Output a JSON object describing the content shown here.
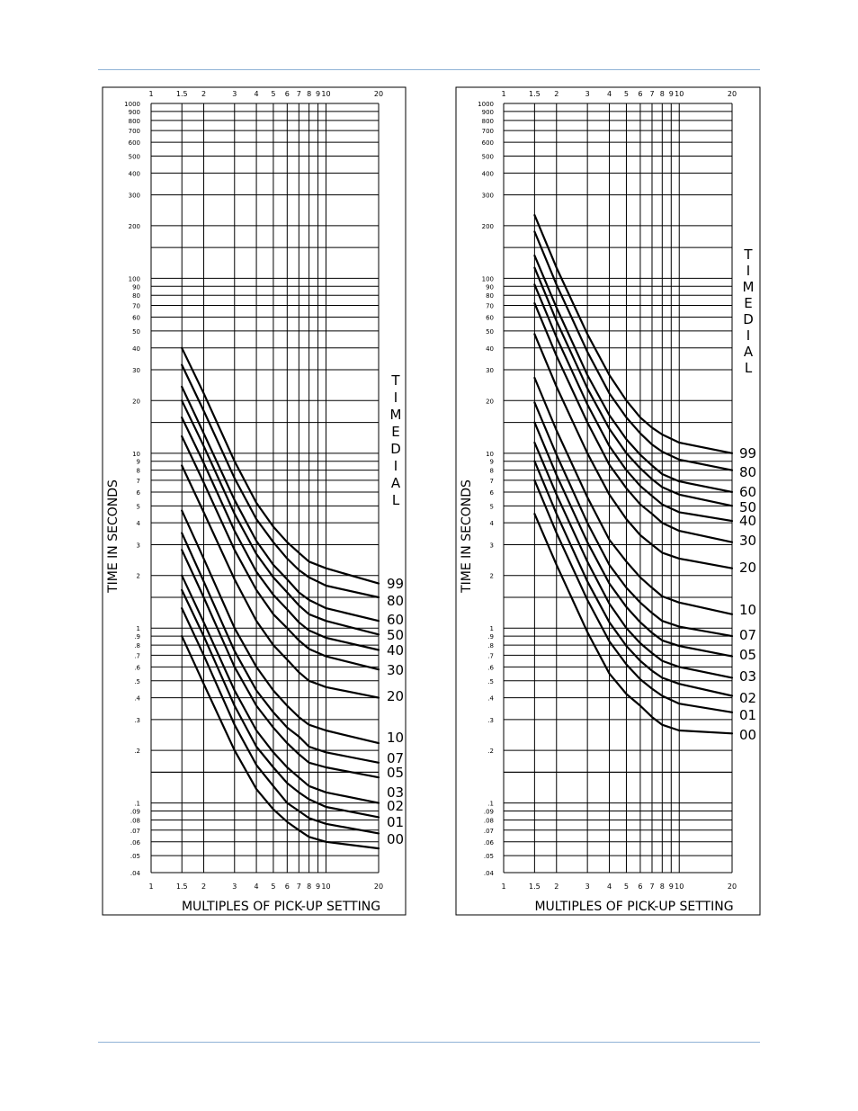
{
  "colors": {
    "rule": "#8fb2d6",
    "ink": "#000000"
  },
  "chart_data": [
    {
      "type": "line",
      "x_scale": "log",
      "y_scale": "log",
      "xlim": [
        1,
        20
      ],
      "ylim": [
        0.04,
        1000
      ],
      "xlabel": "MULTIPLES  OF  PICK-UP  SETTING",
      "ylabel": "TIME  IN  SECONDS",
      "legend_title": "TIMEDIAL",
      "legend_placement": "right",
      "grid": true,
      "x_tick_labels": [
        "1",
        "1.5",
        "2",
        "3",
        "4",
        "5",
        "6",
        "7",
        "8",
        "9",
        "10",
        "20"
      ],
      "y_tick_labels": [
        "1000",
        "900",
        "800",
        "700",
        "600",
        "500",
        "400",
        "300",
        "200",
        "100",
        "90",
        "80",
        "70",
        "60",
        "50",
        "40",
        "30",
        "20",
        "10",
        "9",
        "8",
        "7",
        "6",
        "5",
        "4",
        "3",
        "2",
        "1",
        ".9",
        ".8",
        ".7",
        ".6",
        ".5",
        ".4",
        ".3",
        ".2",
        ".1",
        ".09",
        ".08",
        ".07",
        ".06",
        ".05",
        ".04"
      ],
      "x": [
        1.5,
        2,
        3,
        4,
        5,
        6,
        7,
        8,
        10,
        20
      ],
      "series": [
        {
          "name": "99",
          "values": [
            40,
            22,
            9,
            5.2,
            3.8,
            3.1,
            2.7,
            2.4,
            2.2,
            1.8
          ]
        },
        {
          "name": "80",
          "values": [
            32,
            17.5,
            7.2,
            4.2,
            3.1,
            2.5,
            2.15,
            1.95,
            1.75,
            1.5
          ]
        },
        {
          "name": "60",
          "values": [
            24,
            13,
            5.4,
            3.15,
            2.3,
            1.9,
            1.6,
            1.45,
            1.3,
            1.1
          ]
        },
        {
          "name": "50",
          "values": [
            20,
            11,
            4.5,
            2.65,
            1.95,
            1.6,
            1.35,
            1.2,
            1.1,
            0.92
          ]
        },
        {
          "name": "40",
          "values": [
            16,
            8.8,
            3.6,
            2.1,
            1.55,
            1.28,
            1.08,
            0.97,
            0.88,
            0.75
          ]
        },
        {
          "name": "30",
          "values": [
            12.5,
            6.8,
            2.8,
            1.65,
            1.2,
            1.0,
            0.85,
            0.76,
            0.69,
            0.58
          ]
        },
        {
          "name": "20",
          "values": [
            8.5,
            4.6,
            1.9,
            1.1,
            0.8,
            0.66,
            0.56,
            0.5,
            0.46,
            0.4
          ]
        },
        {
          "name": "10",
          "values": [
            4.7,
            2.5,
            1.0,
            0.6,
            0.44,
            0.36,
            0.31,
            0.28,
            0.26,
            0.22
          ]
        },
        {
          "name": "07",
          "values": [
            3.5,
            1.85,
            0.74,
            0.44,
            0.33,
            0.27,
            0.24,
            0.21,
            0.195,
            0.17
          ]
        },
        {
          "name": "05",
          "values": [
            2.8,
            1.5,
            0.6,
            0.36,
            0.27,
            0.22,
            0.19,
            0.17,
            0.16,
            0.14
          ]
        },
        {
          "name": "03",
          "values": [
            2.0,
            1.08,
            0.44,
            0.26,
            0.195,
            0.16,
            0.14,
            0.125,
            0.115,
            0.1
          ]
        },
        {
          "name": "02",
          "values": [
            1.65,
            0.9,
            0.36,
            0.21,
            0.16,
            0.13,
            0.115,
            0.105,
            0.095,
            0.083
          ]
        },
        {
          "name": "01",
          "values": [
            1.3,
            0.7,
            0.28,
            0.165,
            0.125,
            0.1,
            0.09,
            0.082,
            0.076,
            0.067
          ]
        },
        {
          "name": "00",
          "values": [
            0.9,
            0.48,
            0.2,
            0.12,
            0.092,
            0.078,
            0.07,
            0.064,
            0.06,
            0.055
          ]
        }
      ]
    },
    {
      "type": "line",
      "x_scale": "log",
      "y_scale": "log",
      "xlim": [
        1,
        20
      ],
      "ylim": [
        0.04,
        1000
      ],
      "xlabel": "MULTIPLES  OF  PICK-UP  SETTING",
      "ylabel": "TIME  IN  SECONDS",
      "legend_title": "TIMEDIAL",
      "legend_placement": "right",
      "grid": true,
      "x_tick_labels": [
        "1",
        "1.5",
        "2",
        "3",
        "4",
        "5",
        "6",
        "7",
        "8",
        "9",
        "10",
        "20"
      ],
      "y_tick_labels": [
        "1000",
        "900",
        "800",
        "700",
        "600",
        "500",
        "400",
        "300",
        "200",
        "100",
        "90",
        "80",
        "70",
        "60",
        "50",
        "40",
        "30",
        "20",
        "10",
        "9",
        "8",
        "7",
        "6",
        "5",
        "4",
        "3",
        "2",
        "1",
        ".9",
        ".8",
        ".7",
        ".6",
        ".5",
        ".4",
        ".3",
        ".2",
        ".1",
        ".09",
        ".08",
        ".07",
        ".06",
        ".05",
        ".04"
      ],
      "x": [
        1.5,
        2,
        3,
        4,
        5,
        6,
        7,
        8,
        10,
        20
      ],
      "series": [
        {
          "name": "99",
          "values": [
            230,
            115,
            48,
            28,
            20,
            16,
            14,
            12.8,
            11.5,
            10
          ]
        },
        {
          "name": "80",
          "values": [
            185,
            92,
            38,
            22,
            16,
            13,
            11.2,
            10.2,
            9.2,
            8
          ]
        },
        {
          "name": "60",
          "values": [
            135,
            68,
            28,
            16.5,
            12,
            9.8,
            8.5,
            7.6,
            6.9,
            6
          ]
        },
        {
          "name": "50",
          "values": [
            115,
            57,
            23.5,
            13.8,
            10,
            8.2,
            7.1,
            6.4,
            5.8,
            5
          ]
        },
        {
          "name": "40",
          "values": [
            92,
            46,
            19,
            11,
            8,
            6.5,
            5.7,
            5.1,
            4.6,
            4.1
          ]
        },
        {
          "name": "30",
          "values": [
            72,
            36,
            15,
            8.6,
            6.3,
            5.1,
            4.5,
            4,
            3.6,
            3.1
          ]
        },
        {
          "name": "20",
          "values": [
            48,
            24,
            10,
            5.8,
            4.2,
            3.4,
            3,
            2.7,
            2.5,
            2.2
          ]
        },
        {
          "name": "10",
          "values": [
            27,
            13.5,
            5.6,
            3.2,
            2.4,
            1.95,
            1.7,
            1.52,
            1.4,
            1.2
          ]
        },
        {
          "name": "07",
          "values": [
            19.5,
            9.8,
            4,
            2.3,
            1.7,
            1.4,
            1.22,
            1.1,
            1.02,
            0.9
          ]
        },
        {
          "name": "05",
          "values": [
            15,
            7.5,
            3.1,
            1.8,
            1.32,
            1.08,
            0.94,
            0.85,
            0.79,
            0.69
          ]
        },
        {
          "name": "03",
          "values": [
            11.5,
            5.8,
            2.4,
            1.38,
            1.0,
            0.82,
            0.72,
            0.65,
            0.6,
            0.52
          ]
        },
        {
          "name": "02",
          "values": [
            9,
            4.5,
            1.85,
            1.08,
            0.79,
            0.65,
            0.57,
            0.52,
            0.48,
            0.41
          ]
        },
        {
          "name": "01",
          "values": [
            7,
            3.5,
            1.45,
            0.84,
            0.62,
            0.51,
            0.45,
            0.41,
            0.37,
            0.33
          ]
        },
        {
          "name": "00",
          "values": [
            4.5,
            2.3,
            0.95,
            0.55,
            0.42,
            0.36,
            0.31,
            0.28,
            0.26,
            0.25
          ]
        }
      ]
    }
  ]
}
